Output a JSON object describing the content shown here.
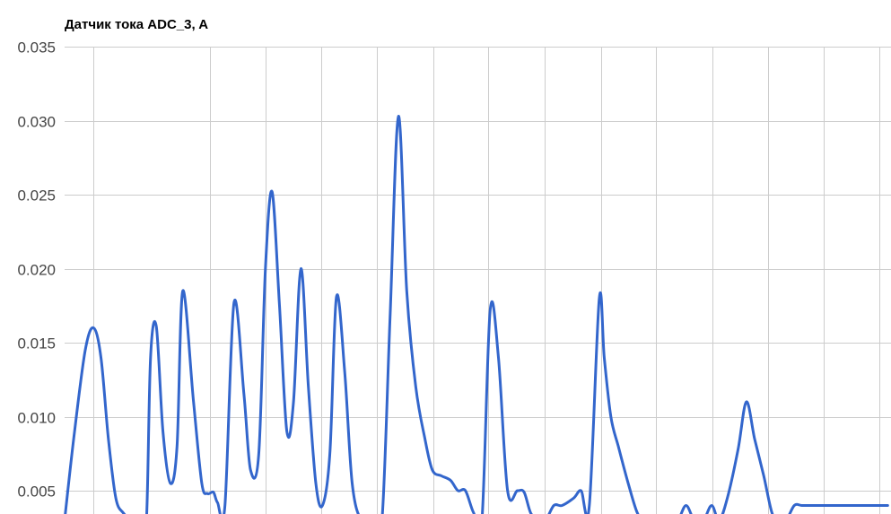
{
  "chart_data": {
    "type": "line",
    "title": "Датчик тока ADC_3, A",
    "xlabel": "",
    "ylabel": "",
    "ylim": [
      0.003,
      0.035
    ],
    "yticks": [
      0.005,
      0.01,
      0.015,
      0.02,
      0.025,
      0.03,
      0.035
    ],
    "ytick_labels": [
      "0.005",
      "0.010",
      "0.015",
      "0.020",
      "0.025",
      "0.030",
      "0.035"
    ],
    "xlim": [
      0,
      100
    ],
    "x_gridlines": [
      3.5,
      17.6,
      24.3,
      31.0,
      37.8,
      44.6,
      51.3,
      58.1,
      64.9,
      71.6,
      78.4,
      85.1,
      91.9,
      98.6
    ],
    "grid": true,
    "line_color": "#3366cc",
    "series": [
      {
        "name": "",
        "x": [
          0,
          1.2,
          2.5,
          3.5,
          4.4,
          5.3,
          6.2,
          7.1,
          8.2,
          9.2,
          9.9,
          10.4,
          11.1,
          11.9,
          12.8,
          13.6,
          14.3,
          15.6,
          16.6,
          17.3,
          18.0,
          18.5,
          19.4,
          20.5,
          21.7,
          22.5,
          23.5,
          24.3,
          25.1,
          26.0,
          26.9,
          27.7,
          28.6,
          29.5,
          30.4,
          31.2,
          32.1,
          32.9,
          33.9,
          34.8,
          35.9,
          37.3,
          38.4,
          39.4,
          40.4,
          41.4,
          42.5,
          43.6,
          44.5,
          45.6,
          46.7,
          47.6,
          48.5,
          49.5,
          50.5,
          51.5,
          52.5,
          53.6,
          54.8,
          55.6,
          56.4,
          57.3,
          58.2,
          59.2,
          60.2,
          61.6,
          62.5,
          63.5,
          64.7,
          65.3,
          66.1,
          67.0,
          68.2,
          69.3,
          70.2,
          71.2,
          72.2,
          73.2,
          74.2,
          75.2,
          76.2,
          77.3,
          78.3,
          79.2,
          80.2,
          81.5,
          82.5,
          83.5,
          84.6,
          85.6,
          86.4,
          87.3,
          88.3,
          89.2,
          90.2,
          91.2,
          92.2,
          93.2,
          94.2,
          95.0,
          96.0,
          97.0,
          97.9,
          98.8,
          99.6
        ],
        "y": [
          0.003,
          0.009,
          0.0145,
          0.016,
          0.014,
          0.0085,
          0.0045,
          0.0035,
          0.003,
          0.003,
          0.003,
          0.014,
          0.0161,
          0.009,
          0.0055,
          0.008,
          0.0185,
          0.011,
          0.0055,
          0.0048,
          0.0049,
          0.0042,
          0.004,
          0.0177,
          0.0115,
          0.0064,
          0.0075,
          0.02,
          0.0252,
          0.0175,
          0.009,
          0.011,
          0.02,
          0.012,
          0.0055,
          0.004,
          0.0075,
          0.0181,
          0.013,
          0.0055,
          0.003,
          0.003,
          0.003,
          0.017,
          0.0303,
          0.0185,
          0.012,
          0.0085,
          0.0064,
          0.006,
          0.0057,
          0.005,
          0.005,
          0.0035,
          0.003,
          0.0172,
          0.014,
          0.005,
          0.005,
          0.0049,
          0.0035,
          0.003,
          0.003,
          0.004,
          0.004,
          0.0045,
          0.005,
          0.004,
          0.018,
          0.014,
          0.01,
          0.008,
          0.0055,
          0.0035,
          0.003,
          0.003,
          0.003,
          0.003,
          0.003,
          0.004,
          0.003,
          0.003,
          0.004,
          0.003,
          0.0045,
          0.0078,
          0.011,
          0.0085,
          0.006,
          0.0035,
          0.003,
          0.003,
          0.004,
          0.004,
          0.004,
          0.004,
          0.004,
          0.004,
          0.004,
          0.004,
          0.004,
          0.004,
          0.004,
          0.004,
          0.004
        ]
      }
    ]
  }
}
